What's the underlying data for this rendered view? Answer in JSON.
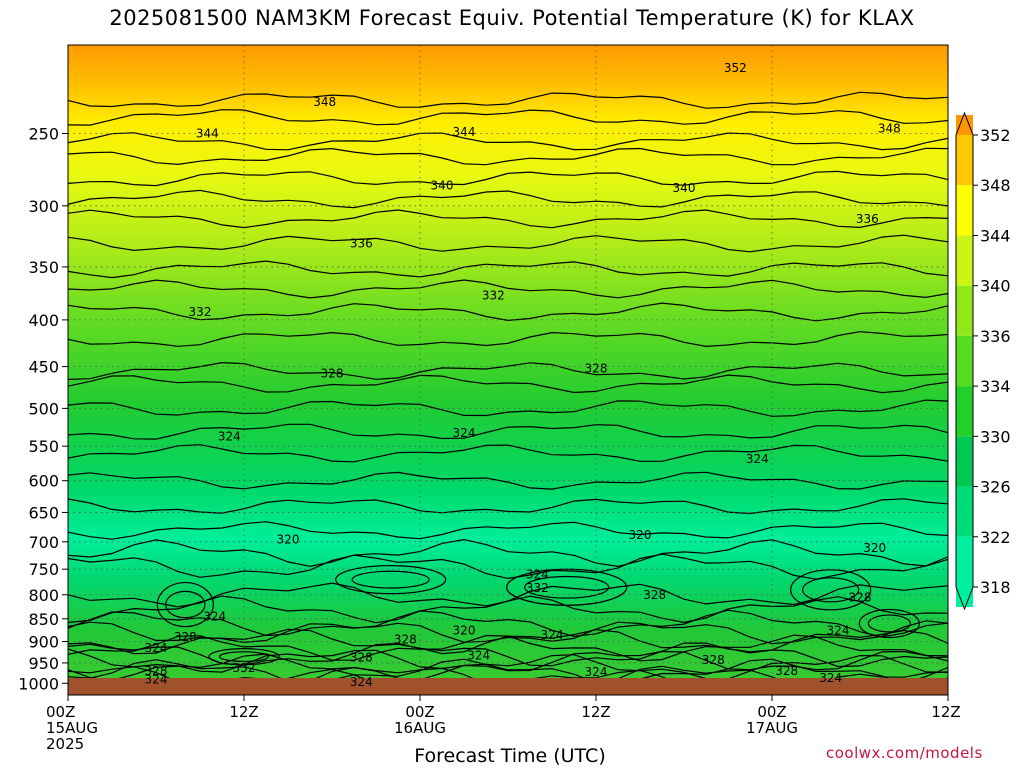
{
  "chart_data": {
    "type": "heatmap",
    "title": "2025081500 NAM3KM Forecast Equiv. Potential Temperature (K) for KLAX",
    "xlabel": "Forecast Time (UTC)",
    "ylabel": "",
    "x_ticks": [
      {
        "hour": 0,
        "lines": [
          "00Z",
          "15AUG",
          "2025"
        ]
      },
      {
        "hour": 12,
        "lines": [
          "12Z"
        ]
      },
      {
        "hour": 24,
        "lines": [
          "00Z",
          "16AUG"
        ]
      },
      {
        "hour": 36,
        "lines": [
          "12Z"
        ]
      },
      {
        "hour": 48,
        "lines": [
          "00Z",
          "17AUG"
        ]
      },
      {
        "hour": 60,
        "lines": [
          "12Z"
        ]
      }
    ],
    "xlim": [
      0,
      60
    ],
    "y_ticks": [
      250,
      300,
      350,
      400,
      450,
      500,
      550,
      600,
      650,
      700,
      750,
      800,
      850,
      900,
      950,
      1000
    ],
    "ylim": [
      1030,
      200
    ],
    "y_scale": "log-pressure",
    "grid": "dotted",
    "colorbar": {
      "levels": [
        318,
        322,
        326,
        330,
        334,
        336,
        340,
        344,
        348,
        352
      ],
      "colors": [
        "#00f0a0",
        "#00dc78",
        "#00c850",
        "#22d02a",
        "#58dc20",
        "#90e81a",
        "#ccf414",
        "#ffff00",
        "#ffc800",
        "#ff9600"
      ]
    },
    "contour_labels": [
      {
        "hour": 45.5,
        "p": 212,
        "text": "352"
      },
      {
        "hour": 17.5,
        "p": 231,
        "text": "348"
      },
      {
        "hour": 56.0,
        "p": 247,
        "text": "348"
      },
      {
        "hour": 9.5,
        "p": 250,
        "text": "344"
      },
      {
        "hour": 27.0,
        "p": 249,
        "text": "344"
      },
      {
        "hour": 25.5,
        "p": 285,
        "text": "340"
      },
      {
        "hour": 42.0,
        "p": 287,
        "text": "340"
      },
      {
        "hour": 54.5,
        "p": 310,
        "text": "336"
      },
      {
        "hour": 20.0,
        "p": 330,
        "text": "336"
      },
      {
        "hour": 9.0,
        "p": 392,
        "text": "332"
      },
      {
        "hour": 29.0,
        "p": 376,
        "text": "332"
      },
      {
        "hour": 18.0,
        "p": 458,
        "text": "328"
      },
      {
        "hour": 36.0,
        "p": 452,
        "text": "328"
      },
      {
        "hour": 11.0,
        "p": 537,
        "text": "324"
      },
      {
        "hour": 27.0,
        "p": 532,
        "text": "324"
      },
      {
        "hour": 47.0,
        "p": 568,
        "text": "324"
      },
      {
        "hour": 15.0,
        "p": 696,
        "text": "320"
      },
      {
        "hour": 39.0,
        "p": 688,
        "text": "320"
      },
      {
        "hour": 55.0,
        "p": 711,
        "text": "320"
      },
      {
        "hour": 32.0,
        "p": 760,
        "text": "324"
      },
      {
        "hour": 32.0,
        "p": 786,
        "text": "332"
      },
      {
        "hour": 40.0,
        "p": 800,
        "text": "328"
      },
      {
        "hour": 54.0,
        "p": 805,
        "text": "328"
      },
      {
        "hour": 10.0,
        "p": 845,
        "text": "324"
      },
      {
        "hour": 27.0,
        "p": 875,
        "text": "320"
      },
      {
        "hour": 8.0,
        "p": 890,
        "text": "328"
      },
      {
        "hour": 23.0,
        "p": 895,
        "text": "328"
      },
      {
        "hour": 33.0,
        "p": 885,
        "text": "324"
      },
      {
        "hour": 52.5,
        "p": 875,
        "text": "324"
      },
      {
        "hour": 6.0,
        "p": 915,
        "text": "324"
      },
      {
        "hour": 20.0,
        "p": 937,
        "text": "328"
      },
      {
        "hour": 28.0,
        "p": 932,
        "text": "324"
      },
      {
        "hour": 44.0,
        "p": 943,
        "text": "328"
      },
      {
        "hour": 12.0,
        "p": 962,
        "text": "332"
      },
      {
        "hour": 6.0,
        "p": 970,
        "text": "328"
      },
      {
        "hour": 36.0,
        "p": 972,
        "text": "324"
      },
      {
        "hour": 49.0,
        "p": 970,
        "text": "328"
      },
      {
        "hour": 6.0,
        "p": 990,
        "text": "324"
      },
      {
        "hour": 20.0,
        "p": 997,
        "text": "324"
      },
      {
        "hour": 52.0,
        "p": 987,
        "text": "324"
      }
    ]
  },
  "credit": "coolwx.com/models"
}
